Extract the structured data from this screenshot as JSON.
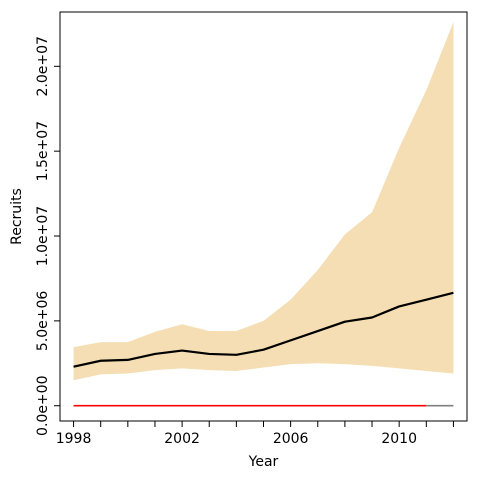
{
  "chart_data": {
    "type": "area",
    "xlabel": "Year",
    "ylabel": "Recruits",
    "x_ticks": [
      1998,
      2002,
      2006,
      2010
    ],
    "y_ticks": [
      0,
      5000000,
      10000000,
      15000000,
      20000000
    ],
    "y_tick_labels": [
      "0.0e+00",
      "5.0e+06",
      "1.0e+07",
      "1.5e+07",
      "2.0e+07"
    ],
    "xlim": [
      1997.5,
      2012.5
    ],
    "ylim": [
      -900000,
      23200000
    ],
    "grid": false,
    "series": [
      {
        "kind": "band",
        "color": "#f5deb3",
        "x": [
          1998,
          1999,
          2000,
          2001,
          2002,
          2003,
          2004,
          2005,
          2006,
          2007,
          2008,
          2009,
          2010,
          2011,
          2012
        ],
        "lower": [
          1500000,
          1850000,
          1900000,
          2100000,
          2200000,
          2100000,
          2050000,
          2250000,
          2450000,
          2500000,
          2450000,
          2350000,
          2200000,
          2050000,
          1900000
        ],
        "upper": [
          3450000,
          3750000,
          3750000,
          4350000,
          4800000,
          4400000,
          4400000,
          5000000,
          6250000,
          8000000,
          10100000,
          11400000,
          15200000,
          18600000,
          22600000
        ]
      },
      {
        "kind": "line",
        "color": "#000000",
        "x": [
          1998,
          1999,
          2000,
          2001,
          2002,
          2003,
          2004,
          2005,
          2006,
          2007,
          2008,
          2009,
          2010,
          2011,
          2012
        ],
        "values": [
          2300000,
          2650000,
          2700000,
          3050000,
          3250000,
          3050000,
          3000000,
          3300000,
          3850000,
          4400000,
          4950000,
          5200000,
          5850000,
          6250000,
          6650000
        ]
      },
      {
        "kind": "line",
        "color": "#ff0000",
        "x": [
          1998,
          2011
        ],
        "values": [
          0,
          0
        ]
      },
      {
        "kind": "line",
        "color": "#808080",
        "x": [
          2011,
          2012
        ],
        "values": [
          0,
          0
        ]
      }
    ]
  }
}
